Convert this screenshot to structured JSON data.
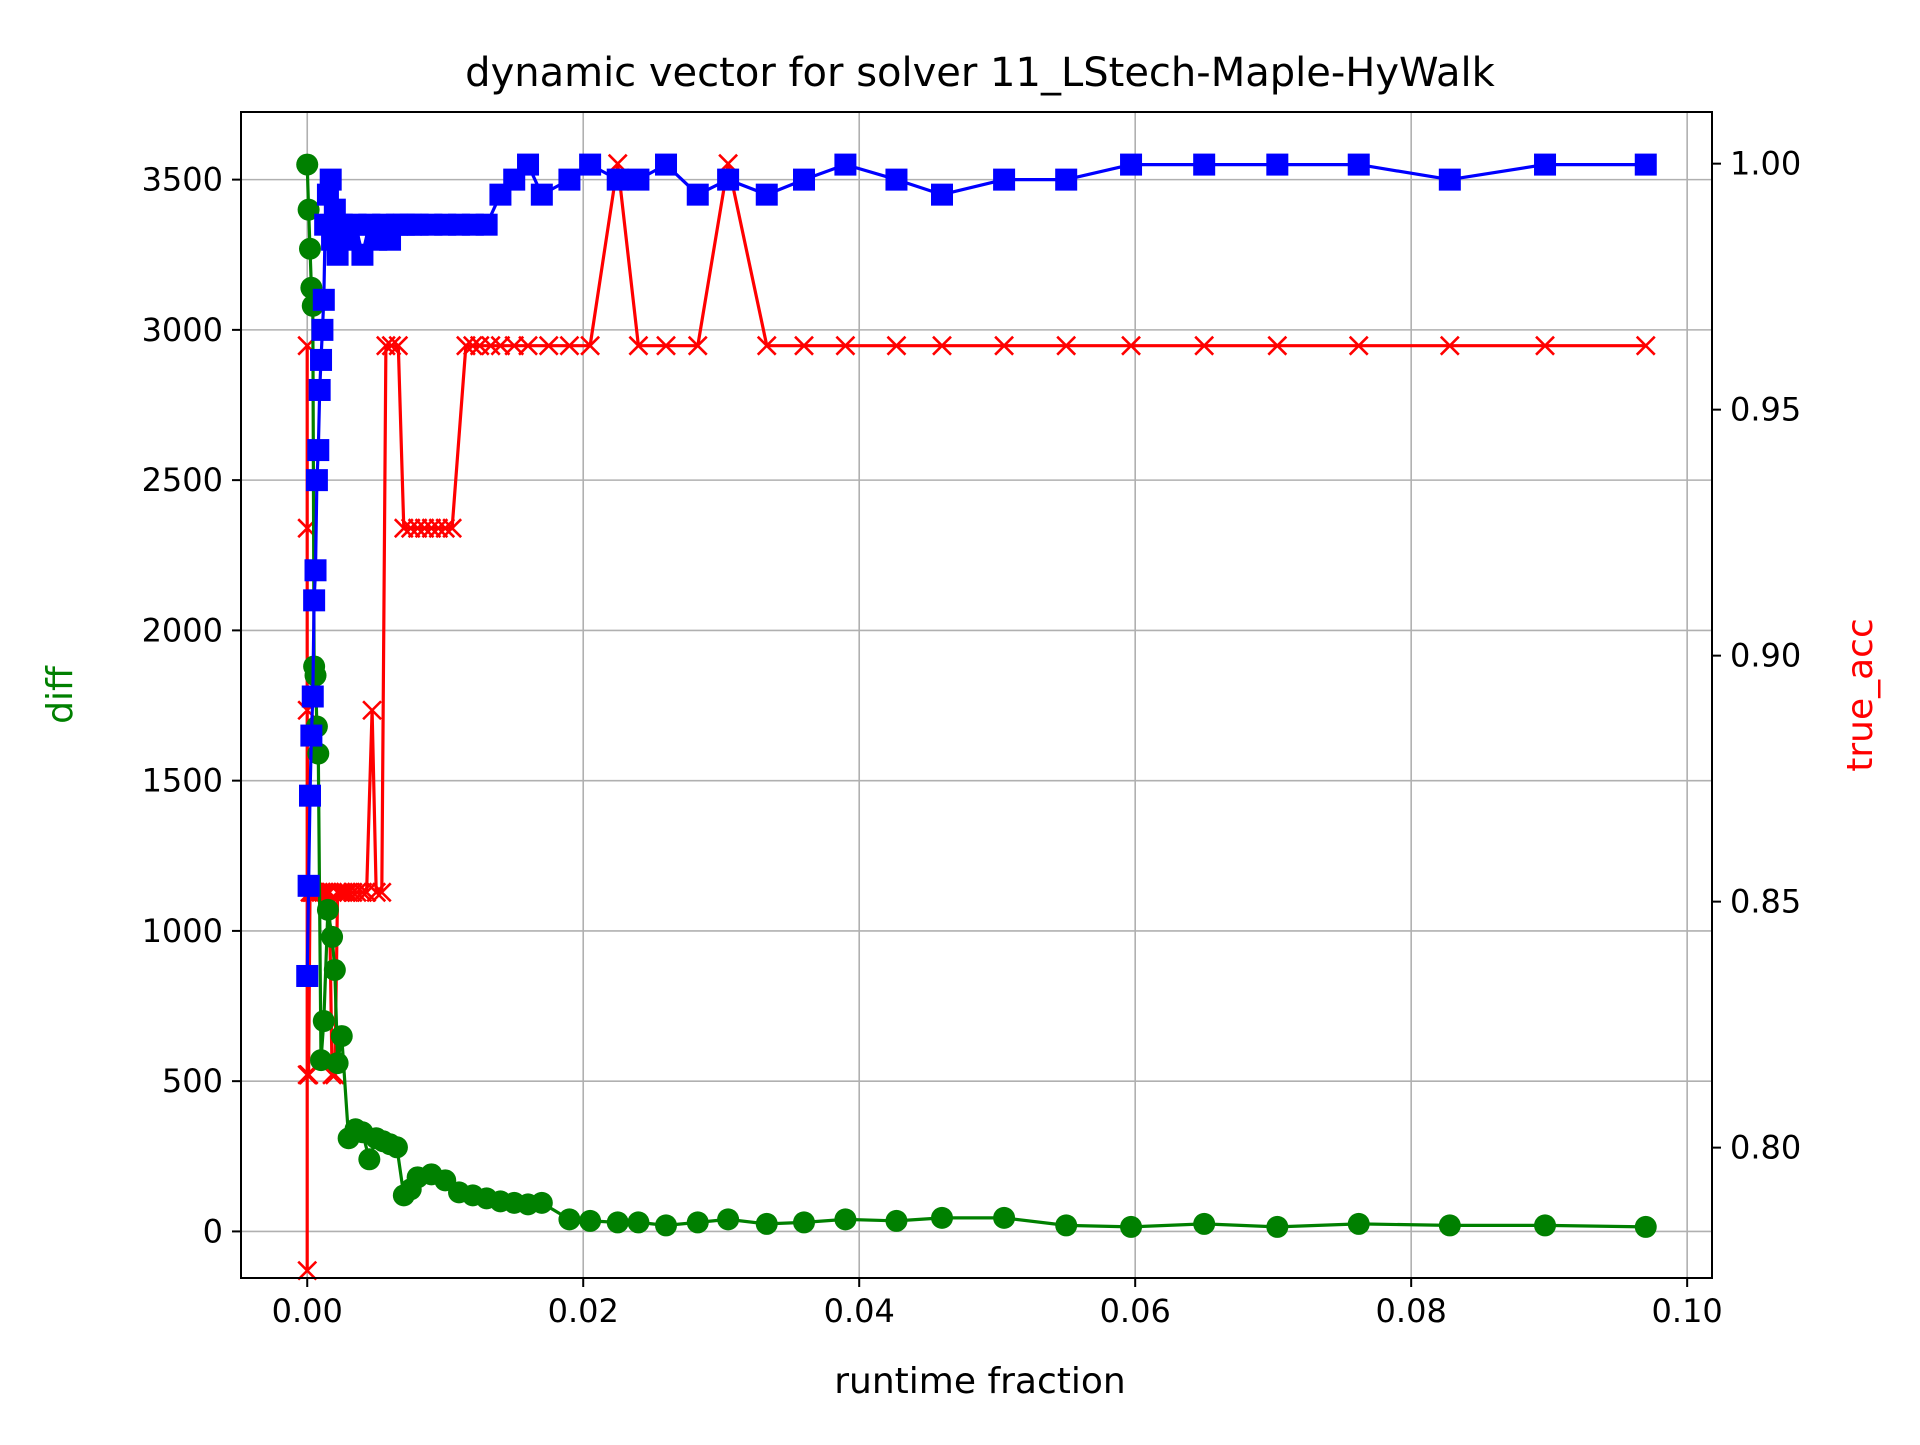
{
  "chart_data": {
    "type": "line",
    "title": "dynamic vector for solver 11_LStech-Maple-HyWalk",
    "xlabel": "runtime fraction",
    "ylabel_left": "diff",
    "ylabel_right": "true_acc",
    "xlim": [
      -0.0048,
      0.1018
    ],
    "ylim_left": [
      -155,
      3725
    ],
    "ylim_right": [
      0.7735,
      1.0105
    ],
    "x_ticks": [
      0.0,
      0.02,
      0.04,
      0.06,
      0.08,
      0.1
    ],
    "x_tick_labels": [
      "0.00",
      "0.02",
      "0.04",
      "0.06",
      "0.08",
      "0.10"
    ],
    "y_left_ticks": [
      0,
      500,
      1000,
      1500,
      2000,
      2500,
      3000,
      3500
    ],
    "y_left_tick_labels": [
      "0",
      "500",
      "1000",
      "1500",
      "2000",
      "2500",
      "3000",
      "3500"
    ],
    "y_right_ticks": [
      0.8,
      0.85,
      0.9,
      0.95,
      1.0
    ],
    "y_right_tick_labels": [
      "0.80",
      "0.85",
      "0.90",
      "0.95",
      "1.00"
    ],
    "grid": true,
    "colors": {
      "diff": "#008000",
      "upper": "#0000ff",
      "true_acc": "#ff0000",
      "left_label": "#008000",
      "right_label": "#ff0000"
    },
    "series": [
      {
        "key": "diff",
        "axis": "left",
        "marker": "circle",
        "x": [
          0.0,
          0.0001,
          0.0002,
          0.0003,
          0.0004,
          0.0005,
          0.0006,
          0.0007,
          0.0008,
          0.001,
          0.0012,
          0.0015,
          0.0018,
          0.002,
          0.0022,
          0.0025,
          0.003,
          0.0035,
          0.004,
          0.0045,
          0.005,
          0.0055,
          0.006,
          0.0065,
          0.007,
          0.0075,
          0.008,
          0.009,
          0.01,
          0.011,
          0.012,
          0.013,
          0.014,
          0.015,
          0.016,
          0.017,
          0.019,
          0.0205,
          0.0225,
          0.024,
          0.026,
          0.0283,
          0.0305,
          0.0333,
          0.036,
          0.039,
          0.0427,
          0.046,
          0.0505,
          0.055,
          0.0597,
          0.065,
          0.0703,
          0.0762,
          0.0828,
          0.0897,
          0.097
        ],
        "y": [
          3550,
          3400,
          3270,
          3140,
          3080,
          1880,
          1850,
          1680,
          1590,
          570,
          700,
          1070,
          980,
          870,
          560,
          650,
          310,
          340,
          330,
          240,
          310,
          300,
          290,
          280,
          120,
          140,
          180,
          190,
          170,
          130,
          120,
          110,
          100,
          95,
          90,
          95,
          40,
          35,
          30,
          30,
          20,
          30,
          40,
          25,
          30,
          40,
          35,
          45,
          45,
          20,
          15,
          25,
          15,
          25,
          20,
          20,
          15
        ]
      },
      {
        "key": "upper",
        "axis": "left",
        "marker": "square",
        "x": [
          0.0,
          0.0001,
          0.0002,
          0.0003,
          0.0004,
          0.0005,
          0.0006,
          0.0007,
          0.0008,
          0.0009,
          0.001,
          0.0011,
          0.0012,
          0.0013,
          0.0015,
          0.0017,
          0.0018,
          0.002,
          0.0022,
          0.0025,
          0.003,
          0.0035,
          0.004,
          0.0045,
          0.005,
          0.0055,
          0.006,
          0.0065,
          0.007,
          0.0075,
          0.008,
          0.009,
          0.01,
          0.011,
          0.012,
          0.013,
          0.014,
          0.015,
          0.016,
          0.017,
          0.019,
          0.0205,
          0.0225,
          0.024,
          0.026,
          0.0283,
          0.0305,
          0.0333,
          0.036,
          0.039,
          0.0427,
          0.046,
          0.0505,
          0.055,
          0.0597,
          0.065,
          0.0703,
          0.0762,
          0.0828,
          0.0897,
          0.097
        ],
        "y": [
          850,
          1150,
          1450,
          1650,
          1780,
          2100,
          2200,
          2500,
          2600,
          2800,
          2900,
          3000,
          3100,
          3350,
          3450,
          3500,
          3300,
          3400,
          3250,
          3350,
          3300,
          3350,
          3250,
          3350,
          3300,
          3350,
          3300,
          3350,
          3350,
          3350,
          3350,
          3350,
          3350,
          3350,
          3350,
          3350,
          3450,
          3500,
          3550,
          3450,
          3500,
          3550,
          3500,
          3500,
          3550,
          3450,
          3500,
          3450,
          3500,
          3550,
          3500,
          3450,
          3500,
          3500,
          3550,
          3550,
          3550,
          3550,
          3500,
          3550,
          3550
        ]
      },
      {
        "key": "true_acc",
        "axis": "right",
        "marker": "x",
        "x": [
          0.0,
          0.0,
          0.0,
          0.0,
          0.0,
          0.0001,
          0.0001,
          0.0002,
          0.0003,
          0.0004,
          0.0005,
          0.0006,
          0.0008,
          0.001,
          0.0012,
          0.0014,
          0.0016,
          0.0018,
          0.002,
          0.0022,
          0.0024,
          0.0026,
          0.0028,
          0.003,
          0.0033,
          0.0036,
          0.004,
          0.0043,
          0.0047,
          0.005,
          0.0054,
          0.0057,
          0.0061,
          0.0066,
          0.007,
          0.0075,
          0.008,
          0.0085,
          0.009,
          0.0095,
          0.01,
          0.0105,
          0.0115,
          0.012,
          0.0125,
          0.0133,
          0.014,
          0.015,
          0.016,
          0.0175,
          0.019,
          0.0205,
          0.0225,
          0.024,
          0.026,
          0.0283,
          0.0305,
          0.0333,
          0.036,
          0.039,
          0.0427,
          0.046,
          0.0505,
          0.055,
          0.0597,
          0.065,
          0.0703,
          0.0762,
          0.0828,
          0.0897,
          0.097
        ],
        "y": [
          0.775,
          0.8148,
          0.9259,
          0.963,
          0.8889,
          0.8148,
          0.8148,
          0.8519,
          0.8519,
          0.8519,
          0.8519,
          0.8519,
          0.8519,
          0.8519,
          0.8519,
          0.8519,
          0.8519,
          0.8148,
          0.8148,
          0.8519,
          0.8519,
          0.8519,
          0.8519,
          0.8519,
          0.8519,
          0.8519,
          0.8519,
          0.8519,
          0.8889,
          0.8519,
          0.8519,
          0.963,
          0.963,
          0.963,
          0.9259,
          0.9259,
          0.9259,
          0.9259,
          0.9259,
          0.9259,
          0.9259,
          0.9259,
          0.963,
          0.963,
          0.963,
          0.963,
          0.963,
          0.963,
          0.963,
          0.963,
          0.963,
          0.963,
          1.0,
          0.963,
          0.963,
          0.963,
          1.0,
          0.963,
          0.963,
          0.963,
          0.963,
          0.963,
          0.963,
          0.963,
          0.963,
          0.963,
          0.963,
          0.963,
          0.963,
          0.963,
          0.963
        ]
      }
    ]
  }
}
